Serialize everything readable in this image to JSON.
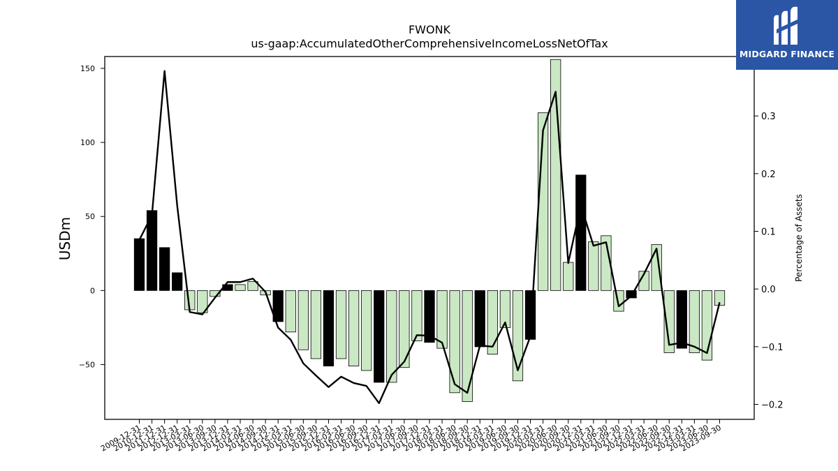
{
  "chart_data": {
    "type": "bar",
    "title": "FWONK",
    "subtitle": "us-gaap:AccumulatedOtherComprehensiveIncomeLossNetOfTax",
    "ylabel": "USDm",
    "y2label": "Percentage of Assets",
    "ylim": [
      -87,
      158
    ],
    "y2lim": [
      -0.226,
      0.403
    ],
    "yticks": [
      -50,
      0,
      50,
      100,
      150
    ],
    "y2ticks": [
      -0.2,
      -0.1,
      0.0,
      0.1,
      0.2,
      0.3
    ],
    "grid": false,
    "categories": [
      "2009-12-31",
      "2010-12-31",
      "2011-12-31",
      "2012-12-31",
      "2013-03-31",
      "2013-06-30",
      "2013-09-30",
      "2013-12-31",
      "2014-03-31",
      "2014-06-30",
      "2014-09-30",
      "2014-12-31",
      "2015-03-31",
      "2015-06-30",
      "2015-09-30",
      "2015-12-31",
      "2016-03-31",
      "2016-06-30",
      "2016-09-30",
      "2016-12-31",
      "2017-03-31",
      "2017-06-30",
      "2017-09-30",
      "2017-12-31",
      "2018-03-31",
      "2018-06-30",
      "2018-09-30",
      "2018-12-31",
      "2019-03-31",
      "2019-06-30",
      "2019-09-30",
      "2019-12-31",
      "2020-03-31",
      "2020-06-30",
      "2020-09-30",
      "2020-12-31",
      "2021-03-31",
      "2021-06-30",
      "2021-09-30",
      "2021-12-31",
      "2022-03-31",
      "2022-06-30",
      "2022-09-30",
      "2022-12-31",
      "2023-03-31",
      "2023-06-30",
      "2023-09-30"
    ],
    "series": [
      {
        "chart": "bar",
        "values": [
          35,
          54,
          29,
          12,
          -13,
          -15,
          -4,
          4,
          4,
          6,
          -3,
          -21,
          -28,
          -40,
          -46,
          -51,
          -46,
          -51,
          -54,
          -62,
          -62,
          -52,
          -34,
          -35,
          -39,
          -69,
          -75,
          -38,
          -43,
          -25,
          -61,
          -33,
          120,
          156,
          19,
          78,
          33,
          37,
          -14,
          -5,
          13,
          31,
          -42,
          -39,
          -42,
          -47,
          -10
        ],
        "highlight": [
          true,
          true,
          true,
          true,
          false,
          false,
          false,
          true,
          false,
          false,
          false,
          true,
          false,
          false,
          false,
          true,
          false,
          false,
          false,
          true,
          false,
          false,
          false,
          true,
          false,
          false,
          false,
          true,
          false,
          false,
          false,
          true,
          false,
          false,
          false,
          true,
          false,
          false,
          false,
          true,
          false,
          false,
          false,
          true,
          false,
          false,
          false
        ]
      },
      {
        "chart": "line",
        "axis": "right",
        "values": [
          0.085,
          0.128,
          0.378,
          0.145,
          -0.04,
          -0.044,
          -0.015,
          0.012,
          0.012,
          0.018,
          -0.005,
          -0.067,
          -0.088,
          -0.129,
          -0.15,
          -0.17,
          -0.152,
          -0.163,
          -0.168,
          -0.198,
          -0.149,
          -0.126,
          -0.08,
          -0.081,
          -0.093,
          -0.165,
          -0.18,
          -0.098,
          -0.1,
          -0.058,
          -0.141,
          -0.082,
          0.275,
          0.342,
          0.045,
          0.145,
          0.075,
          0.081,
          -0.03,
          -0.012,
          0.026,
          0.07,
          -0.097,
          -0.093,
          -0.1,
          -0.111,
          -0.023
        ]
      }
    ],
    "colors": {
      "bar": "#cbe8c4",
      "bar_highlight": "#000000",
      "bar_edge": "#000000",
      "line": "#000000"
    }
  },
  "logo": {
    "text": "MIDGARD FINANCE",
    "bg": "#2a56a5"
  }
}
